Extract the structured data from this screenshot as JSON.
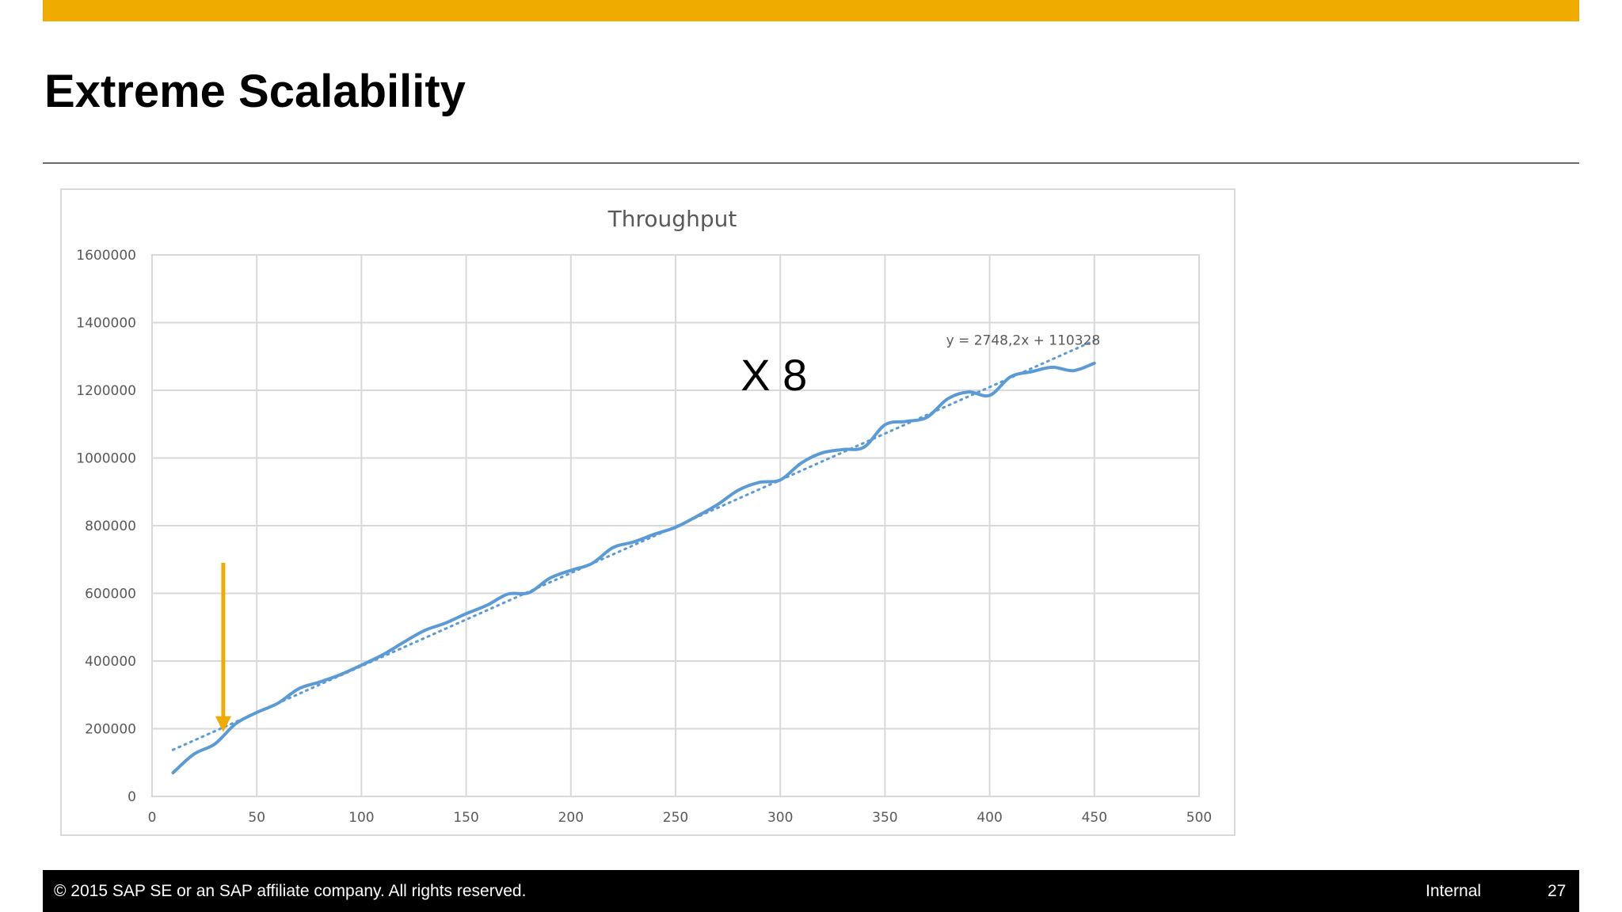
{
  "colors": {
    "accent": "#f0ab00",
    "line": "#5b9bd5",
    "trend": "#5b9bd5",
    "footer_bg": "#000000",
    "grid": "#d9d9d9",
    "annotation_arrow": "#f0ab00"
  },
  "slide": {
    "title": "Extreme Scalability"
  },
  "footer": {
    "copyright": "© 2015 SAP SE or an SAP affiliate company. All rights reserved.",
    "classification": "Internal",
    "page_number": "27"
  },
  "chart_data": {
    "type": "line",
    "title": "Throughput",
    "xlabel": "",
    "ylabel": "",
    "xlim": [
      0,
      500
    ],
    "ylim": [
      0,
      1600000
    ],
    "x_ticks": [
      "0",
      "50",
      "100",
      "150",
      "200",
      "250",
      "300",
      "350",
      "400",
      "450",
      "500"
    ],
    "y_ticks": [
      "0",
      "200000",
      "400000",
      "600000",
      "800000",
      "1000000",
      "1200000",
      "1400000",
      "1600000"
    ],
    "grid": true,
    "series": [
      {
        "smooth": true,
        "x": [
          10,
          20,
          30,
          40,
          50,
          60,
          70,
          80,
          90,
          100,
          110,
          120,
          130,
          140,
          150,
          160,
          170,
          180,
          190,
          200,
          210,
          220,
          230,
          240,
          250,
          260,
          270,
          280,
          290,
          300,
          310,
          320,
          330,
          340,
          350,
          360,
          370,
          380,
          390,
          400,
          410,
          420,
          430,
          440,
          450
        ],
        "y": [
          70000,
          125000,
          155000,
          215000,
          248000,
          275000,
          318000,
          338000,
          360000,
          388000,
          418000,
          455000,
          490000,
          512000,
          540000,
          565000,
          598000,
          602000,
          645000,
          668000,
          688000,
          735000,
          752000,
          775000,
          795000,
          827000,
          862000,
          905000,
          928000,
          935000,
          985000,
          1015000,
          1025000,
          1032000,
          1098000,
          1108000,
          1120000,
          1175000,
          1195000,
          1185000,
          1240000,
          1255000,
          1268000,
          1258000,
          1280000
        ]
      }
    ],
    "trendline": {
      "style": "dotted",
      "slope": 2748.2,
      "intercept": 110328,
      "x_range": [
        10,
        450
      ],
      "equation_label": "y = 2748,2x + 110328"
    },
    "annotations": [
      {
        "text": "X 8"
      },
      {
        "type": "arrow",
        "x": 34,
        "y_from": 690000,
        "y_to": 190000
      }
    ]
  }
}
